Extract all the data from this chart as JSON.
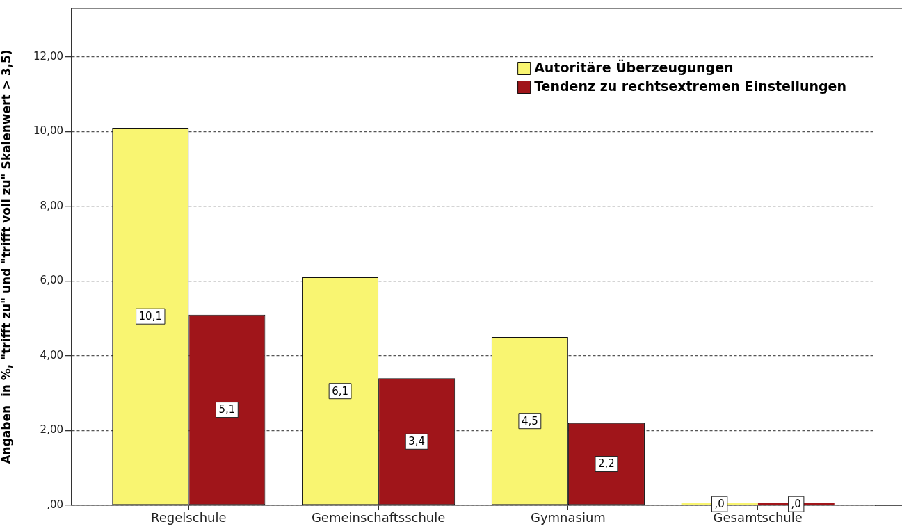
{
  "chart_data": {
    "type": "bar",
    "ylabel": "Angaben  in %, \"trifft zu\" und \"trifft voll zu\" Skalenwert > 3,5)",
    "categories": [
      "Regelschule",
      "Gemeinschaftsschule",
      "Gymnasium",
      "Gesamtschule"
    ],
    "series": [
      {
        "name": "Autoritäre Überzeugungen",
        "color": "#f9f571",
        "values": [
          10.1,
          6.1,
          4.5,
          0
        ],
        "value_labels": [
          "10,1",
          "6,1",
          "4,5",
          ",0"
        ]
      },
      {
        "name": "Tendenz zu rechtsextremen Einstellungen",
        "color": "#a0151a",
        "values": [
          5.1,
          3.4,
          2.2,
          0
        ],
        "value_labels": [
          "5,1",
          "3,4",
          "2,2",
          ",0"
        ]
      }
    ],
    "ylim": [
      0,
      13.3
    ],
    "yticks": [
      {
        "value": 0,
        "label": ",00"
      },
      {
        "value": 2,
        "label": "2,00"
      },
      {
        "value": 4,
        "label": "4,00"
      },
      {
        "value": 6,
        "label": "6,00"
      },
      {
        "value": 8,
        "label": "8,00"
      },
      {
        "value": 10,
        "label": "10,00"
      },
      {
        "value": 12,
        "label": "12,00"
      }
    ],
    "grid": "y",
    "legend": "top right"
  }
}
